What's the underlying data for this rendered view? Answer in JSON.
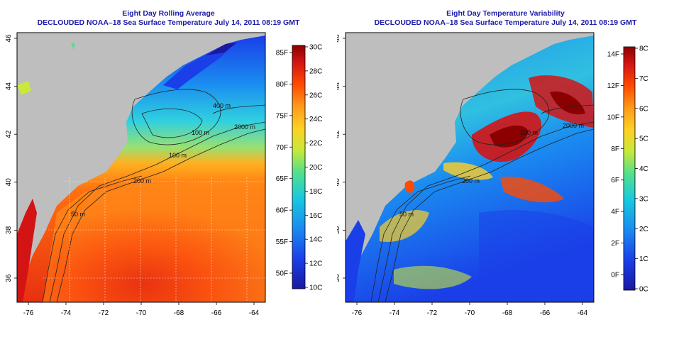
{
  "panels": [
    {
      "id": "rolling-average",
      "title": "Eight Day Rolling Average",
      "subtitle": "DECLOUDED NOAA–18 Sea Surface Temperature July 14, 2011 08:19 GMT",
      "x_ticks": [
        "-76",
        "-74",
        "-72",
        "-70",
        "-68",
        "-66",
        "-64"
      ],
      "y_ticks": [
        "36",
        "38",
        "40",
        "42",
        "44",
        "46"
      ],
      "contours": [
        "50 m",
        "200 m",
        "100 m",
        "2000 m",
        "100 m",
        "400 m"
      ],
      "colorbar_f": [
        "85F",
        "80F",
        "75F",
        "70F",
        "65F",
        "60F",
        "55F",
        "50F"
      ],
      "colorbar_c": [
        "30C",
        "28C",
        "26C",
        "24C",
        "22C",
        "20C",
        "18C",
        "16C",
        "14C",
        "12C",
        "10C"
      ],
      "colors": [
        "#8b0000",
        "#d41414",
        "#ff4a00",
        "#ff9a1a",
        "#ffd024",
        "#c8e83a",
        "#55e08a",
        "#18c8e0",
        "#1a8cf0",
        "#1a3ee8",
        "#1a18a0"
      ]
    },
    {
      "id": "temperature-variability",
      "title": "Eight Day Temperature Variability",
      "subtitle": "DECLOUDED NOAA–18 Sea Surface Temperature July 14, 2011 08:19 GMT",
      "x_ticks": [
        "-76",
        "-74",
        "-72",
        "-70",
        "-68",
        "-66",
        "-64"
      ],
      "y_ticks": [
        "36",
        "38",
        "40",
        "42",
        "44",
        "46"
      ],
      "contours": [
        "50 m",
        "200 m",
        "100 m",
        "2000 m"
      ],
      "colorbar_f": [
        "14F",
        "12F",
        "10F",
        "8F",
        "6F",
        "4F",
        "2F",
        "0F"
      ],
      "colorbar_c": [
        "8C",
        "7C",
        "6C",
        "5C",
        "4C",
        "3C",
        "2C",
        "1C",
        "0C"
      ],
      "colors": [
        "#8b0000",
        "#d41414",
        "#ff4a00",
        "#ff9a1a",
        "#ffd024",
        "#c8e83a",
        "#55e08a",
        "#18c8e0",
        "#1a8cf0",
        "#1a3ee8",
        "#1a18a0"
      ]
    }
  ]
}
